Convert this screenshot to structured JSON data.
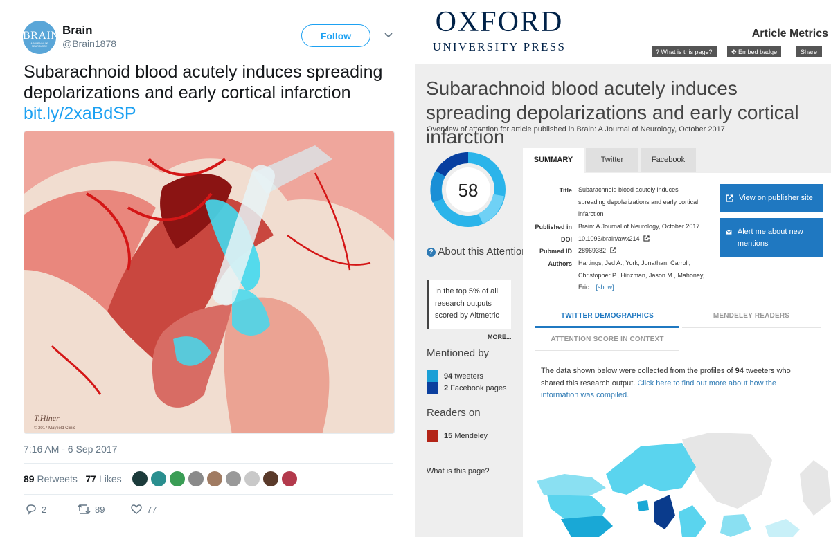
{
  "tweet": {
    "avatar": {
      "logo_text": "BRAIN",
      "logo_subtext": "A JOURNAL OF NEUROLOGY"
    },
    "account_name": "Brain",
    "handle": "@Brain1878",
    "follow_label": "Follow",
    "text": "Subarachnoid blood acutely induces spreading depolarizations and early cortical infarction",
    "link": "bit.ly/2xaBdSP",
    "image": {
      "signature": "T.Hiner",
      "credit": "© 2017 Mayfield Clinic"
    },
    "timestamp": "7:16 AM - 6 Sep 2017",
    "retweets_count": "89",
    "retweets_label": "Retweets",
    "likes_count": "77",
    "likes_label": "Likes",
    "actions": {
      "replies": "2",
      "retweets": "89",
      "likes": "77"
    },
    "brand_color": "#1da1f2"
  },
  "altmetric": {
    "publisher_line1": "OXFORD",
    "publisher_line2": "UNIVERSITY PRESS",
    "page_label": "Article Metrics",
    "header_buttons": {
      "what": "What is this page?",
      "embed": "Embed badge",
      "share": "Share"
    },
    "article_title": "Subarachnoid blood acutely induces spreading depolarizations and early cortical infarction",
    "overview": "Overview of attention for article published in Brain: A Journal of Neurology, October 2017",
    "score": "58",
    "about_score": "About this Attention Score",
    "top_percent": "In the top 5% of all research outputs scored by Altmetric",
    "more_label": "MORE...",
    "mentioned_by_heading": "Mentioned by",
    "mentions": [
      {
        "count": "94",
        "label": "tweeters",
        "color": "#1a9fd6"
      },
      {
        "count": "2",
        "label": "Facebook pages",
        "color": "#0b3f9e"
      }
    ],
    "readers_heading": "Readers on",
    "readers": [
      {
        "count": "15",
        "label": "Mendeley",
        "color": "#b32417"
      }
    ],
    "what_is_this": "What is this page?",
    "tabs": [
      "SUMMARY",
      "Twitter",
      "Facebook"
    ],
    "details": {
      "title_label": "Title",
      "title_value": "Subarachnoid blood acutely induces spreading depolarizations and early cortical infarction",
      "published_label": "Published in",
      "published_value": "Brain: A Journal of Neurology, October 2017",
      "doi_label": "DOI",
      "doi_value": "10.1093/brain/awx214",
      "pubmed_label": "Pubmed ID",
      "pubmed_value": "28969382",
      "authors_label": "Authors",
      "authors_value": "Hartings, Jed A., York, Jonathan, Carroll, Christopher P., Hinzman, Jason M., Mahoney, Eric...",
      "show_label": "[show]"
    },
    "publisher_button": "View on publisher site",
    "alert_button": "Alert me about new mentions",
    "sub_tabs": [
      "TWITTER DEMOGRAPHICS",
      "MENDELEY READERS",
      "ATTENTION SCORE IN CONTEXT"
    ],
    "data_text_prefix": "The data shown below were collected from the profiles of",
    "data_text_count": "94",
    "data_text_middle": "tweeters who shared this research output.",
    "data_text_link": "Click here to find out more about how the information was compiled.",
    "accent_color": "#1f78c1"
  }
}
